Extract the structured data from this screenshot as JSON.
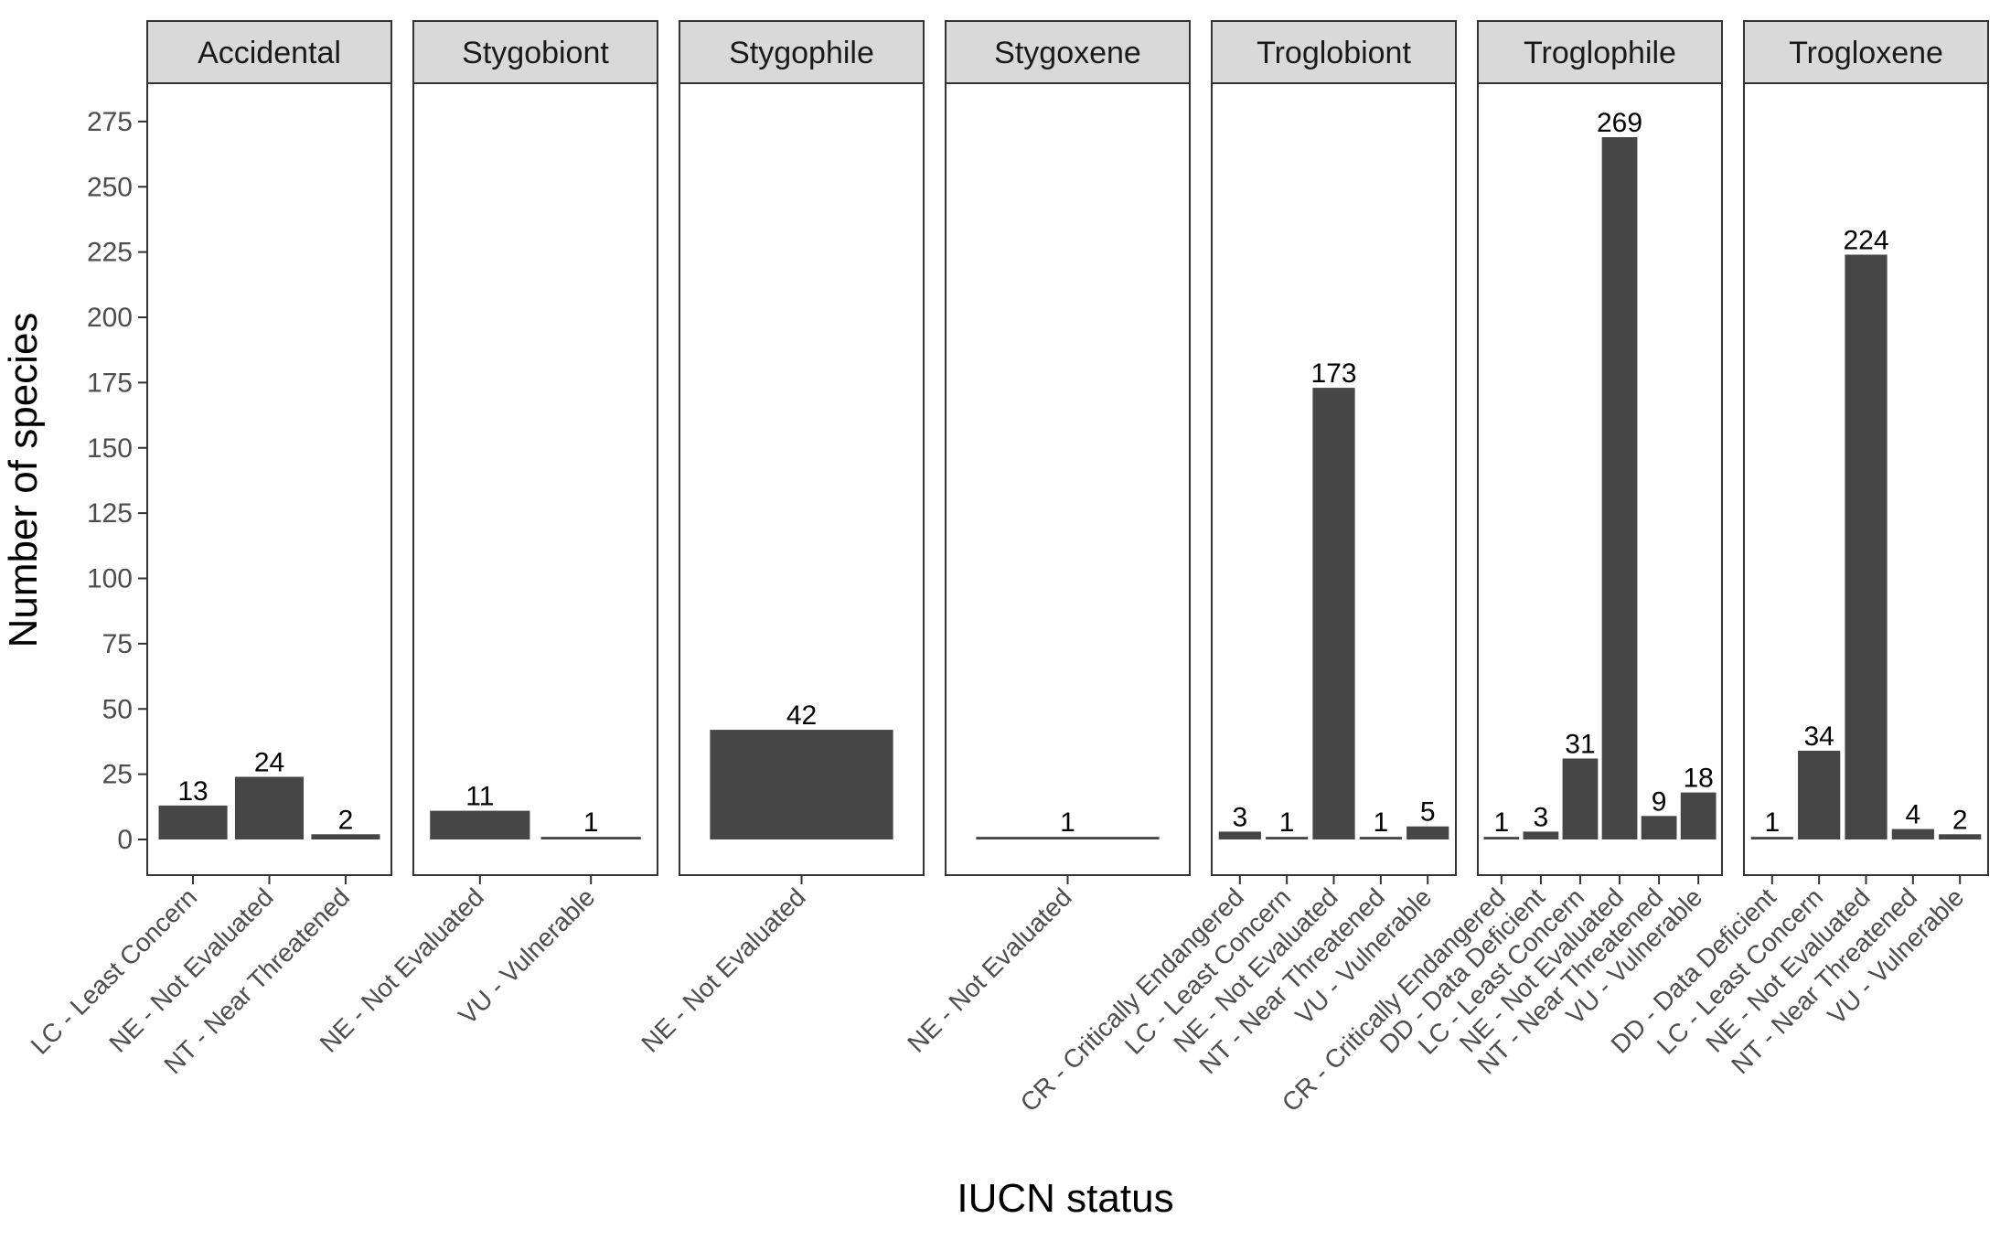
{
  "chart_data": {
    "type": "bar",
    "title": "",
    "xlabel": "IUCN status",
    "ylabel": "Number of species",
    "ylim": [
      0,
      287
    ],
    "yticks": [
      0,
      25,
      50,
      75,
      100,
      125,
      150,
      175,
      200,
      225,
      250,
      275
    ],
    "grid": false,
    "legend": "none",
    "bar_color": "#464646",
    "strip_color": "#d9d9d9",
    "facets": [
      {
        "name": "Accidental",
        "categories": [
          "LC - Least Concern",
          "NE - Not Evaluated",
          "NT - Near Threatened"
        ],
        "values": [
          13,
          24,
          2
        ]
      },
      {
        "name": "Stygobiont",
        "categories": [
          "NE - Not Evaluated",
          "VU - Vulnerable"
        ],
        "values": [
          11,
          1
        ]
      },
      {
        "name": "Stygophile",
        "categories": [
          "NE - Not Evaluated"
        ],
        "values": [
          42
        ]
      },
      {
        "name": "Stygoxene",
        "categories": [
          "NE - Not Evaluated"
        ],
        "values": [
          1
        ]
      },
      {
        "name": "Troglobiont",
        "categories": [
          "CR - Critically Endangered",
          "LC - Least Concern",
          "NE - Not Evaluated",
          "NT - Near Threatened",
          "VU - Vulnerable"
        ],
        "values": [
          3,
          1,
          173,
          1,
          5
        ]
      },
      {
        "name": "Troglophile",
        "categories": [
          "CR - Critically Endangered",
          "DD - Data Deficient",
          "LC - Least Concern",
          "NE - Not Evaluated",
          "NT - Near Threatened",
          "VU - Vulnerable"
        ],
        "values": [
          1,
          3,
          31,
          269,
          9,
          18
        ]
      },
      {
        "name": "Trogloxene",
        "categories": [
          "DD - Data Deficient",
          "LC - Least Concern",
          "NE - Not Evaluated",
          "NT - Near Threatened",
          "VU - Vulnerable"
        ],
        "values": [
          1,
          34,
          224,
          4,
          2
        ]
      }
    ]
  }
}
